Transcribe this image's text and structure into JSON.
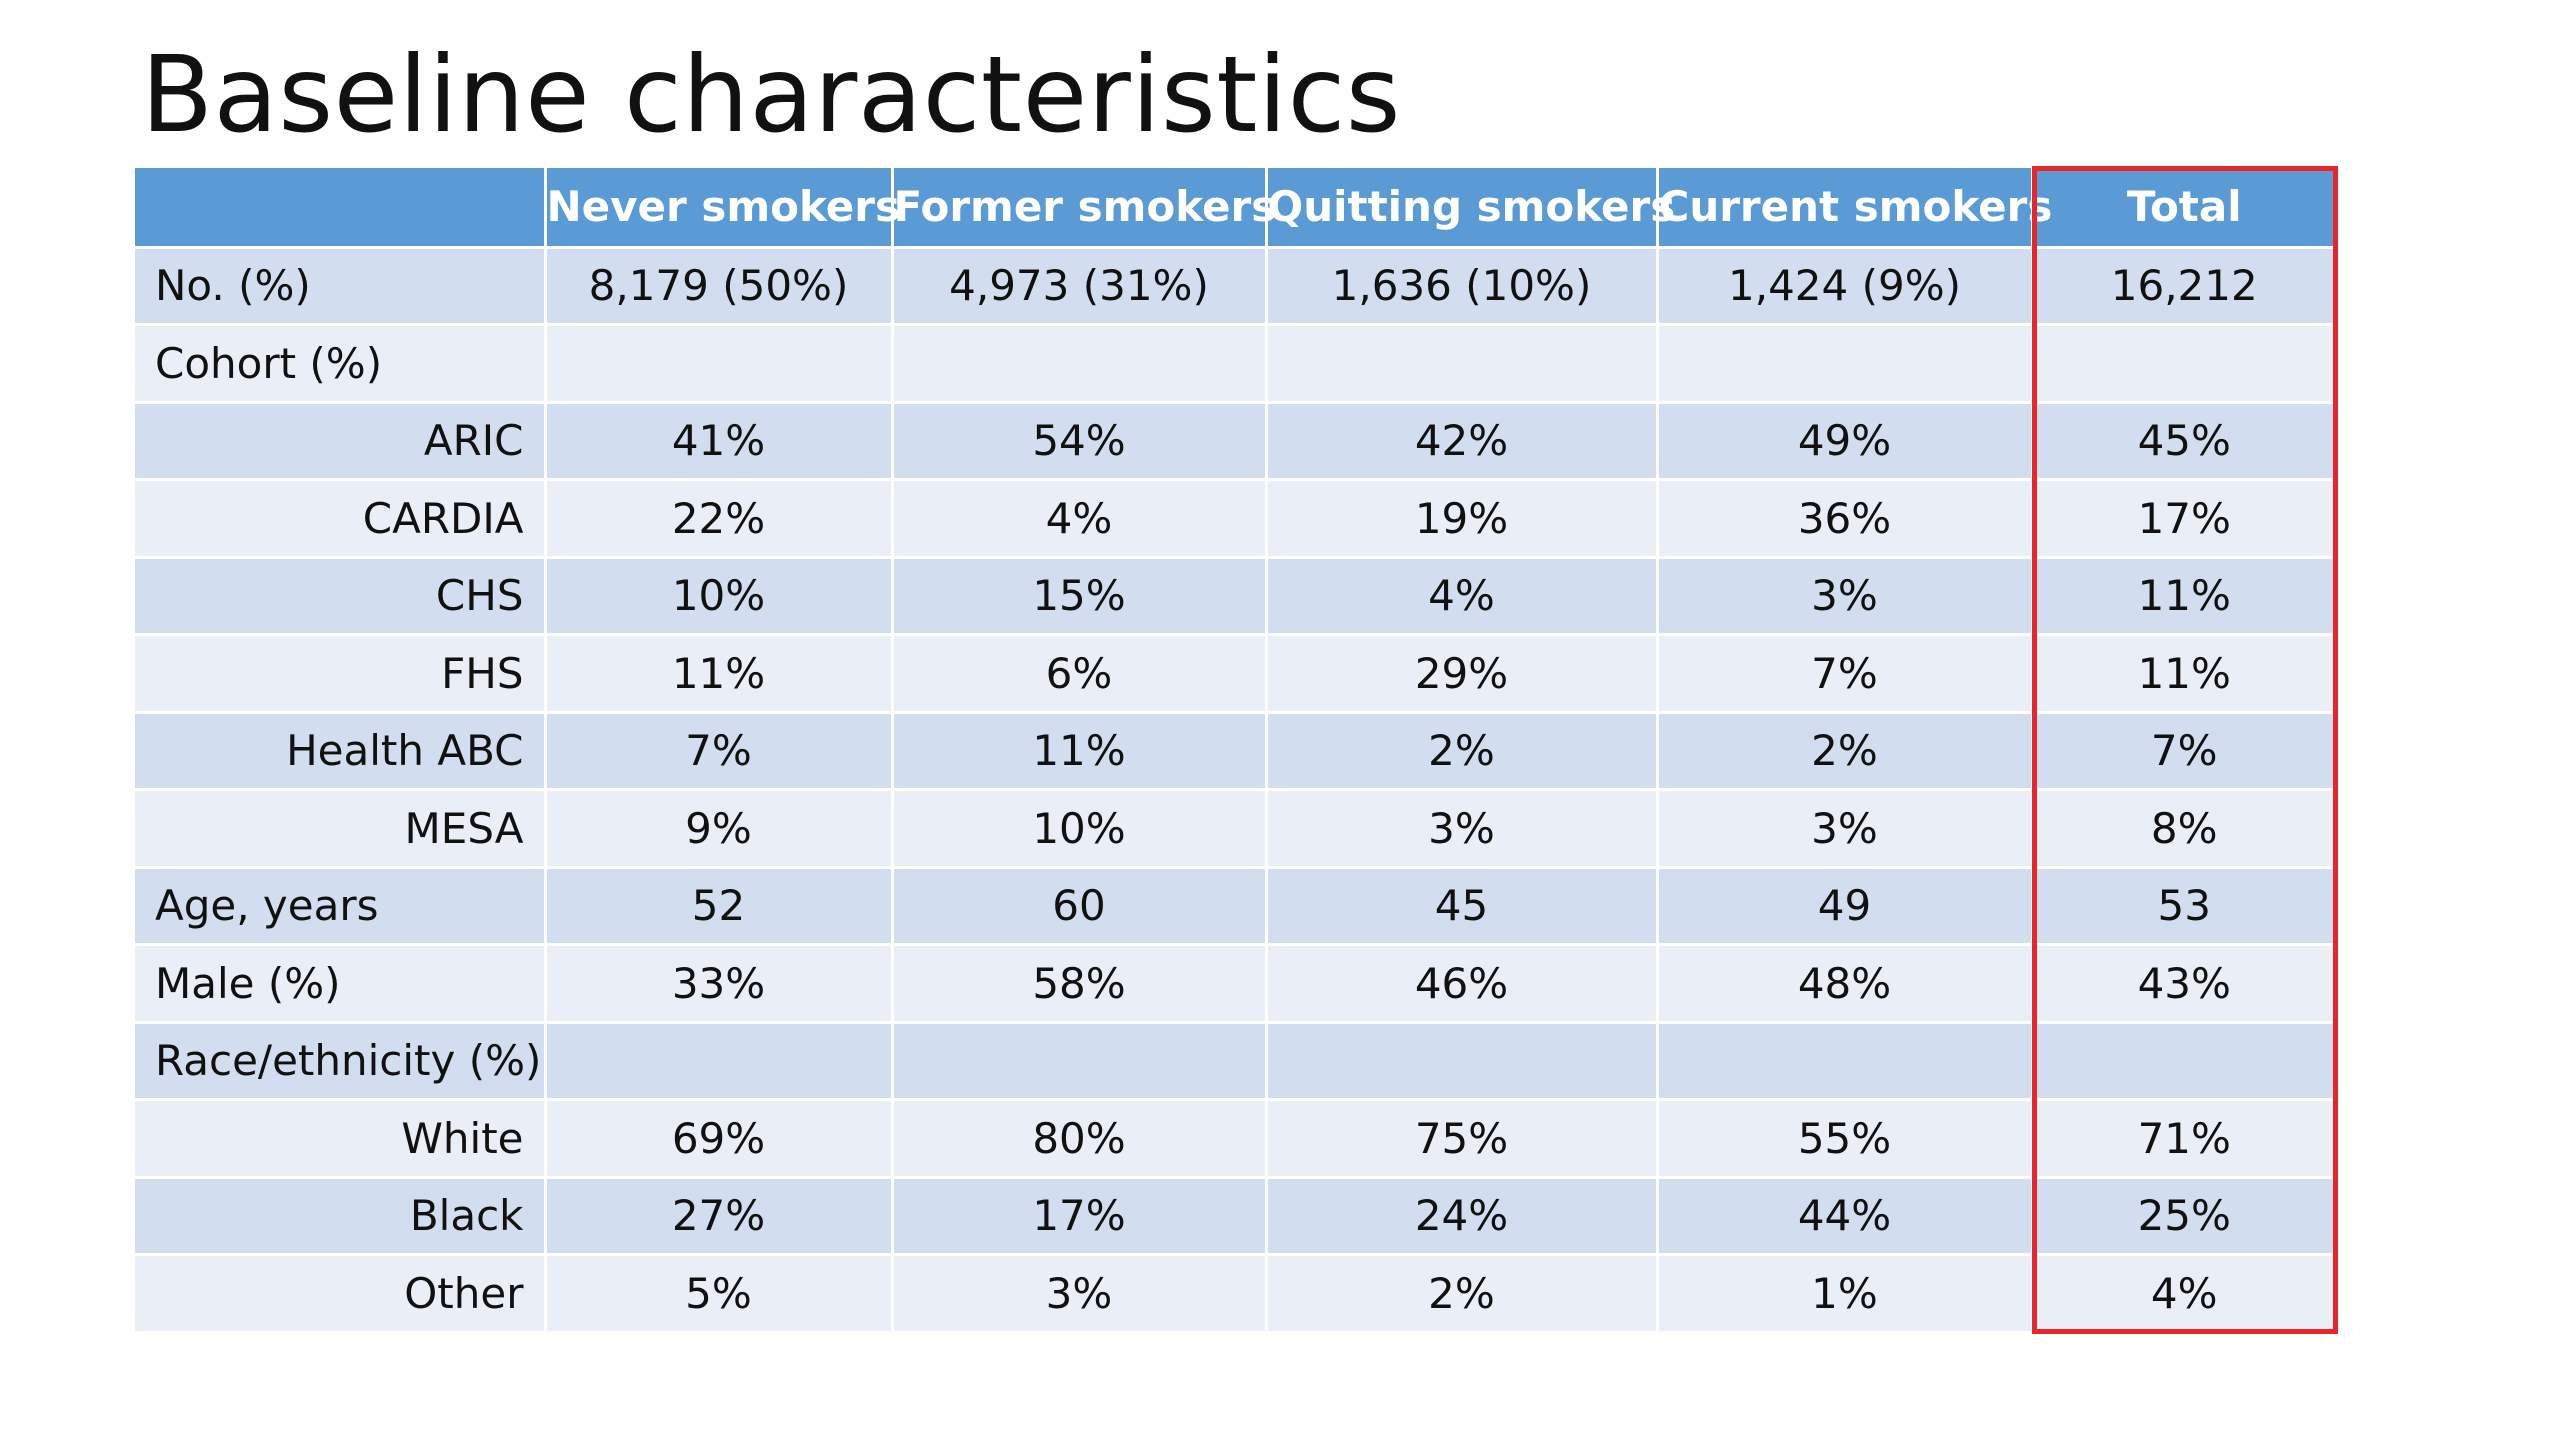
{
  "title": "Baseline characteristics",
  "colors": {
    "header_bg": "#5b9bd5",
    "row_dark": "#d2deef",
    "row_light": "#eaeff7",
    "highlight": "#e8262a"
  },
  "table": {
    "headers": [
      "",
      "Never smokers",
      "Former smokers",
      "Quitting smokers",
      "Current smokers",
      "Total"
    ],
    "rows": [
      {
        "label": "No. (%)",
        "values": [
          "8,179 (50%)",
          "4,973 (31%)",
          "1,636 (10%)",
          "1,424 (9%)",
          "16,212"
        ]
      },
      {
        "label": "Cohort (%)",
        "values": [
          "",
          "",
          "",
          "",
          ""
        ]
      },
      {
        "label": "ARIC",
        "values": [
          "41%",
          "54%",
          "42%",
          "49%",
          "45%"
        ]
      },
      {
        "label": "CARDIA",
        "values": [
          "22%",
          "4%",
          "19%",
          "36%",
          "17%"
        ]
      },
      {
        "label": "CHS",
        "values": [
          "10%",
          "15%",
          "4%",
          "3%",
          "11%"
        ]
      },
      {
        "label": "FHS",
        "values": [
          "11%",
          "6%",
          "29%",
          "7%",
          "11%"
        ]
      },
      {
        "label": "Health ABC",
        "values": [
          "7%",
          "11%",
          "2%",
          "2%",
          "7%"
        ]
      },
      {
        "label": "MESA",
        "values": [
          "9%",
          "10%",
          "3%",
          "3%",
          "8%"
        ]
      },
      {
        "label": "Age, years",
        "values": [
          "52",
          "60",
          "45",
          "49",
          "53"
        ]
      },
      {
        "label": "Male (%)",
        "values": [
          "33%",
          "58%",
          "46%",
          "48%",
          "43%"
        ]
      },
      {
        "label": "Race/ethnicity (%)",
        "values": [
          "",
          "",
          "",
          "",
          ""
        ]
      },
      {
        "label": "White",
        "values": [
          "69%",
          "80%",
          "75%",
          "55%",
          "71%"
        ]
      },
      {
        "label": "Black",
        "values": [
          "27%",
          "17%",
          "24%",
          "44%",
          "25%"
        ]
      },
      {
        "label": "Other",
        "values": [
          "5%",
          "3%",
          "2%",
          "1%",
          "4%"
        ]
      }
    ]
  }
}
